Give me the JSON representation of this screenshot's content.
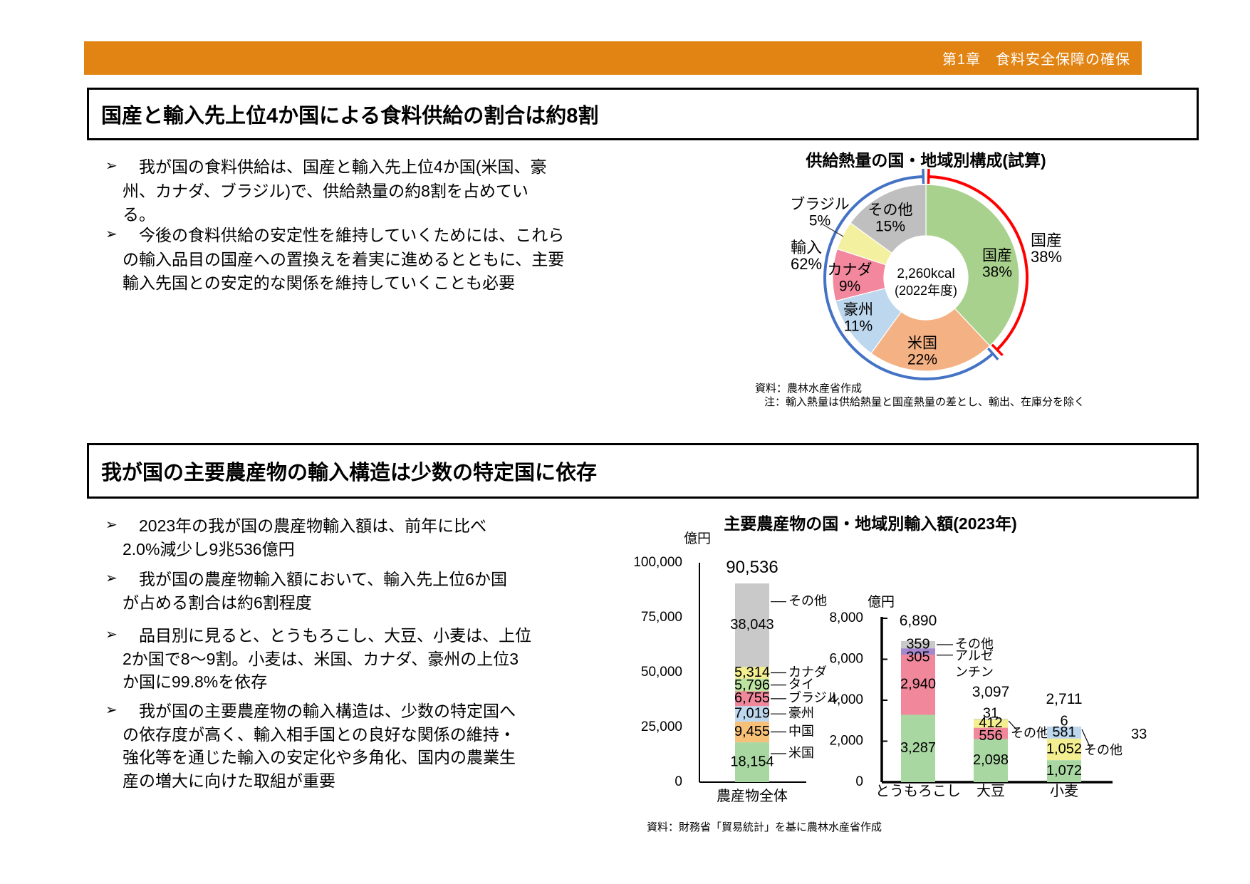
{
  "header": {
    "chapter": "第1章　食料安全保障の確保"
  },
  "page_number": "33",
  "section1": {
    "title": "国産と輸入先上位4か国による食料供給の割合は約8割",
    "bullets": [
      "　我が国の食料供給は、国産と輸入先上位4か国(米国、豪州、カナダ、ブラジル)で、供給熱量の約8割を占めている。",
      "　今後の食料供給の安定性を維持していくためには、これらの輸入品目の国産への置換えを着実に進めるとともに、主要輸入先国との安定的な関係を維持していくことも必要"
    ],
    "note1": "資料：農林水産省作成",
    "note2": "注：輸入熱量は供給熱量と国産熱量の差とし、輸出、在庫分を除く"
  },
  "section2": {
    "title": "我が国の主要農産物の輸入構造は少数の特定国に依存",
    "bullets": [
      "　2023年の我が国の農産物輸入額は、前年に比べ2.0%減少し9兆536億円",
      "　我が国の農産物輸入額において、輸入先上位6か国が占める割合は約6割程度",
      "　品目別に見ると、とうもろこし、大豆、小麦は、上位2か国で8～9割。小麦は、米国、カナダ、豪州の上位3か国に99.8%を依存",
      "　我が国の主要農産物の輸入構造は、少数の特定国への依存度が高く、輸入相手国との良好な関係の維持・強化等を通じた輸入の安定化や多角化、国内の農業生産の増大に向けた取組が重要"
    ],
    "source": "資料：財務省「貿易統計」を基に農林水産省作成"
  },
  "chart_data": [
    {
      "type": "pie",
      "title": "供給熱量の国・地域別構成(試算)",
      "center_label": "2,260kcal",
      "center_sublabel": "(2022年度)",
      "unit": "%",
      "slices": [
        {
          "label": "国産",
          "pct": 38,
          "color": "#a9d18e"
        },
        {
          "label": "米国",
          "pct": 22,
          "color": "#f4b183"
        },
        {
          "label": "豪州",
          "pct": 11,
          "color": "#bdd7ee"
        },
        {
          "label": "カナダ",
          "pct": 9,
          "color": "#f2879d"
        },
        {
          "label": "ブラジル",
          "pct": 5,
          "color": "#f3f0a0"
        },
        {
          "label": "その他",
          "pct": 15,
          "color": "#bfbfbf"
        }
      ],
      "outer_arcs": [
        {
          "label": "国産",
          "pct": 38,
          "color": "#ff0000"
        },
        {
          "label": "輸入",
          "pct": 62,
          "color": "#4472c4"
        }
      ]
    },
    {
      "type": "bar",
      "title": "主要農産物の国・地域別輸入額(2023年)",
      "unit": "億円",
      "left_chart": {
        "category": "農産物全体",
        "total": 90536,
        "ylim": [
          0,
          100000
        ],
        "yticks": [
          100000,
          75000,
          50000,
          25000,
          0
        ],
        "segments_top_to_bottom": [
          {
            "label": "その他",
            "value": 38043,
            "color": "#c9c9c9"
          },
          {
            "label": "カナダ",
            "value": 5314,
            "color": "#f3ee8f"
          },
          {
            "label": "タイ",
            "value": 5796,
            "color": "#bce3a1"
          },
          {
            "label": "ブラジル",
            "value": 6755,
            "color": "#f0879b"
          },
          {
            "label": "豪州",
            "value": 7019,
            "color": "#bdd7ee"
          },
          {
            "label": "中国",
            "value": 9455,
            "color": "#f6c078"
          },
          {
            "label": "米国",
            "value": 18154,
            "color": "#a9d7a2"
          }
        ]
      },
      "right_chart": {
        "ylim": [
          0,
          8000
        ],
        "yticks": [
          8000,
          6000,
          4000,
          2000,
          0
        ],
        "bars": [
          {
            "category": "とうもろこし",
            "total": 6890,
            "segments_top_to_bottom": [
              {
                "label": "その他",
                "value": 359,
                "color": "#c9c9c9"
              },
              {
                "label": "アルゼンチン",
                "value": 305,
                "color": "#a488cf"
              },
              {
                "value": 2940,
                "color": "#f0879b"
              },
              {
                "value": 3287,
                "color": "#a9d7a2"
              }
            ]
          },
          {
            "category": "大豆",
            "total": 3097,
            "segments_top_to_bottom": [
              {
                "label": "その他",
                "value": 31,
                "color": "#c9c9c9"
              },
              {
                "value": 412,
                "color": "#f3ee8f"
              },
              {
                "value": 556,
                "color": "#f0879b"
              },
              {
                "value": 2098,
                "color": "#a9d7a2"
              }
            ]
          },
          {
            "category": "小麦",
            "total": 2711,
            "segments_top_to_bottom": [
              {
                "label": "その他",
                "value": 6,
                "color": "#c9c9c9"
              },
              {
                "value": 581,
                "color": "#bdd7ee"
              },
              {
                "value": 1052,
                "color": "#f3ee8f"
              },
              {
                "value": 1072,
                "color": "#a9d7a2"
              }
            ]
          }
        ]
      }
    }
  ]
}
